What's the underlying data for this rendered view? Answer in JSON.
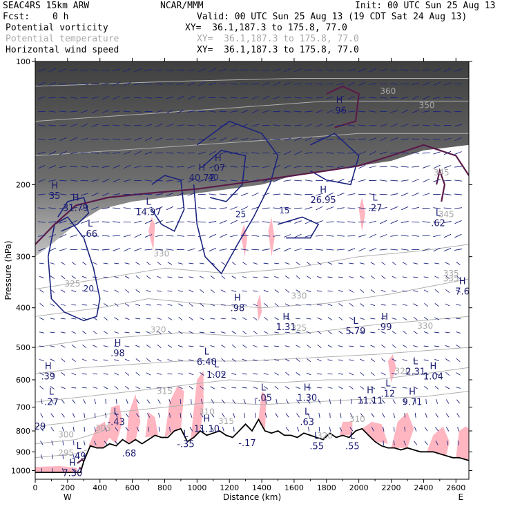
{
  "header": {
    "model": "SEAC4RS 15km ARW",
    "org": "NCAR/MMM",
    "init": "Init: 00 UTC Sun 25 Aug 13",
    "fcst_label": "Fcst:",
    "fcst_value": "0 h",
    "valid": "Valid: 00 UTC Sun 25 Aug 13 (19 CDT Sat 24 Aug 13)",
    "fields": [
      {
        "name": "Potential vorticity",
        "xy": "XY=  36.1,187.3 to 175.8, 77.0",
        "color": "#000000"
      },
      {
        "name": "Potential temperature",
        "xy": "XY=  36.1,187.3 to 175.8, 77.0",
        "color": "#a8a8a8"
      },
      {
        "name": "Horizontal wind speed",
        "xy": "XY=  36.1,187.3 to 175.8, 77.0",
        "color": "#000000"
      }
    ]
  },
  "chart_data": {
    "type": "cross-section",
    "xlabel": "Distance (km)",
    "ylabel": "Pressure (hPa)",
    "x_range": [
      0,
      2680
    ],
    "y_range": [
      1050,
      100
    ],
    "y_scale": "log",
    "x_ticks": [
      0,
      200,
      400,
      600,
      800,
      1000,
      1200,
      1400,
      1600,
      1800,
      2000,
      2200,
      2400,
      2600
    ],
    "y_ticks": [
      100,
      200,
      300,
      400,
      500,
      600,
      700,
      800,
      900,
      1000
    ],
    "x_endpoints": {
      "left": "W",
      "right": "E"
    },
    "colors": {
      "pv_shading": "#4a4a4a",
      "pv_contour": "#5a1a4a",
      "theta_contour": "#b0b0b0",
      "wind_contour": "#1a237e",
      "vectors": "#1a237e",
      "ascent_shading": "#ffb6c1",
      "terrain": "#000000"
    },
    "terrain_pressure": [
      [
        0,
        1010
      ],
      [
        280,
        1010
      ],
      [
        300,
        950
      ],
      [
        340,
        870
      ],
      [
        380,
        880
      ],
      [
        420,
        880
      ],
      [
        460,
        860
      ],
      [
        500,
        870
      ],
      [
        540,
        840
      ],
      [
        580,
        860
      ],
      [
        620,
        840
      ],
      [
        660,
        860
      ],
      [
        700,
        840
      ],
      [
        740,
        820
      ],
      [
        780,
        830
      ],
      [
        820,
        830
      ],
      [
        860,
        800
      ],
      [
        900,
        790
      ],
      [
        940,
        850
      ],
      [
        980,
        830
      ],
      [
        1020,
        800
      ],
      [
        1060,
        820
      ],
      [
        1100,
        810
      ],
      [
        1140,
        800
      ],
      [
        1180,
        820
      ],
      [
        1220,
        830
      ],
      [
        1260,
        800
      ],
      [
        1300,
        770
      ],
      [
        1340,
        800
      ],
      [
        1380,
        750
      ],
      [
        1420,
        800
      ],
      [
        1460,
        810
      ],
      [
        1500,
        800
      ],
      [
        1540,
        820
      ],
      [
        1580,
        820
      ],
      [
        1620,
        830
      ],
      [
        1660,
        810
      ],
      [
        1700,
        820
      ],
      [
        1740,
        830
      ],
      [
        1780,
        840
      ],
      [
        1820,
        810
      ],
      [
        1860,
        830
      ],
      [
        1900,
        820
      ],
      [
        1940,
        830
      ],
      [
        1980,
        800
      ],
      [
        2020,
        790
      ],
      [
        2060,
        820
      ],
      [
        2100,
        850
      ],
      [
        2140,
        870
      ],
      [
        2180,
        880
      ],
      [
        2220,
        880
      ],
      [
        2260,
        890
      ],
      [
        2300,
        880
      ],
      [
        2340,
        890
      ],
      [
        2380,
        900
      ],
      [
        2420,
        900
      ],
      [
        2460,
        900
      ],
      [
        2500,
        910
      ],
      [
        2540,
        920
      ],
      [
        2580,
        930
      ],
      [
        2620,
        930
      ],
      [
        2660,
        940
      ],
      [
        2680,
        945
      ]
    ],
    "theta_labels": [
      {
        "x": 230,
        "p": 355,
        "text": "325"
      },
      {
        "x": 780,
        "p": 300,
        "text": "330"
      },
      {
        "x": 1630,
        "p": 380,
        "text": "330"
      },
      {
        "x": 1630,
        "p": 455,
        "text": "325"
      },
      {
        "x": 760,
        "p": 460,
        "text": "320"
      },
      {
        "x": 2410,
        "p": 450,
        "text": "330"
      },
      {
        "x": 2270,
        "p": 580,
        "text": "320"
      },
      {
        "x": 800,
        "p": 650,
        "text": "315"
      },
      {
        "x": 420,
        "p": 800,
        "text": "305"
      },
      {
        "x": 190,
        "p": 830,
        "text": "300"
      },
      {
        "x": 190,
        "p": 920,
        "text": "295"
      },
      {
        "x": 1060,
        "p": 730,
        "text": "310"
      },
      {
        "x": 1180,
        "p": 770,
        "text": "315"
      },
      {
        "x": 1790,
        "p": 835,
        "text": "320"
      },
      {
        "x": 1990,
        "p": 760,
        "text": "310"
      },
      {
        "x": 2570,
        "p": 345,
        "text": "335"
      },
      {
        "x": 2570,
        "p": 335,
        "text": "335"
      },
      {
        "x": 2540,
        "p": 240,
        "text": "345"
      },
      {
        "x": 2510,
        "p": 190,
        "text": "345"
      },
      {
        "x": 2420,
        "p": 130,
        "text": "350"
      },
      {
        "x": 2180,
        "p": 120,
        "text": "360"
      }
    ],
    "wind_labels": [
      {
        "x": 330,
        "p": 365,
        "text": "20"
      },
      {
        "x": 1270,
        "p": 240,
        "text": "25"
      },
      {
        "x": 1540,
        "p": 235,
        "text": "15"
      },
      {
        "x": 1100,
        "p": 195,
        "text": "40"
      }
    ],
    "hl_labels": [
      {
        "x": 250,
        "p": 225,
        "sym": "H",
        "val": "31.79"
      },
      {
        "x": 120,
        "p": 210,
        "sym": "H",
        "val": "35"
      },
      {
        "x": 340,
        "p": 260,
        "sym": "L",
        "val": ".66"
      },
      {
        "x": 700,
        "p": 230,
        "sym": "L",
        "val": "14.97"
      },
      {
        "x": 1030,
        "p": 190,
        "sym": "H",
        "val": "40.77"
      },
      {
        "x": 1130,
        "p": 180,
        "sym": "H",
        "val": ".07"
      },
      {
        "x": 1780,
        "p": 215,
        "sym": "H",
        "val": "26.95"
      },
      {
        "x": 1880,
        "p": 130,
        "sym": "H",
        "val": ".96"
      },
      {
        "x": 2100,
        "p": 225,
        "sym": "L",
        "val": ".27"
      },
      {
        "x": 2490,
        "p": 245,
        "sym": "L",
        "val": ".62"
      },
      {
        "x": 2640,
        "p": 360,
        "sym": "H",
        "val": "7.6"
      },
      {
        "x": 1250,
        "p": 395,
        "sym": "H",
        "val": ".98"
      },
      {
        "x": 1550,
        "p": 440,
        "sym": "H",
        "val": "1.31"
      },
      {
        "x": 1980,
        "p": 450,
        "sym": "L",
        "val": "5.79"
      },
      {
        "x": 2160,
        "p": 440,
        "sym": "H",
        "val": ".99"
      },
      {
        "x": 510,
        "p": 510,
        "sym": "H",
        "val": ".98"
      },
      {
        "x": 1060,
        "p": 535,
        "sym": "L",
        "val": "6.40"
      },
      {
        "x": 1120,
        "p": 575,
        "sym": "L",
        "val": "1.02"
      },
      {
        "x": 2350,
        "p": 565,
        "sym": "L",
        "val": "2.31"
      },
      {
        "x": 2460,
        "p": 580,
        "sym": "H",
        "val": "1.04"
      },
      {
        "x": 80,
        "p": 580,
        "sym": "H",
        "val": ".39"
      },
      {
        "x": 2180,
        "p": 640,
        "sym": "L",
        "val": ".12"
      },
      {
        "x": 1410,
        "p": 655,
        "sym": "L",
        "val": "-.05"
      },
      {
        "x": 1680,
        "p": 655,
        "sym": "H",
        "val": "1.30"
      },
      {
        "x": 2070,
        "p": 665,
        "sym": "H",
        "val": "11.11"
      },
      {
        "x": 2330,
        "p": 670,
        "sym": "H",
        "val": "9.71"
      },
      {
        "x": 100,
        "p": 670,
        "sym": "L",
        "val": ".27"
      },
      {
        "x": 500,
        "p": 750,
        "sym": "L",
        "val": "-.43"
      },
      {
        "x": 1680,
        "p": 750,
        "sym": "L",
        "val": ".63"
      },
      {
        "x": 1060,
        "p": 780,
        "sym": "H",
        "val": "11.10"
      },
      {
        "x": 30,
        "p": 770,
        "sym": "",
        "val": "29"
      },
      {
        "x": 930,
        "p": 850,
        "sym": "L",
        "val": "-.35"
      },
      {
        "x": 1310,
        "p": 845,
        "sym": "",
        "val": "-.17"
      },
      {
        "x": 1740,
        "p": 860,
        "sym": "L",
        "val": ".55"
      },
      {
        "x": 1960,
        "p": 860,
        "sym": "L",
        "val": ".55"
      },
      {
        "x": 580,
        "p": 895,
        "sym": "",
        "val": ".68"
      },
      {
        "x": 270,
        "p": 910,
        "sym": "L",
        "val": ".49"
      },
      {
        "x": 230,
        "p": 1000,
        "sym": "H",
        "val": "7.30"
      }
    ]
  }
}
